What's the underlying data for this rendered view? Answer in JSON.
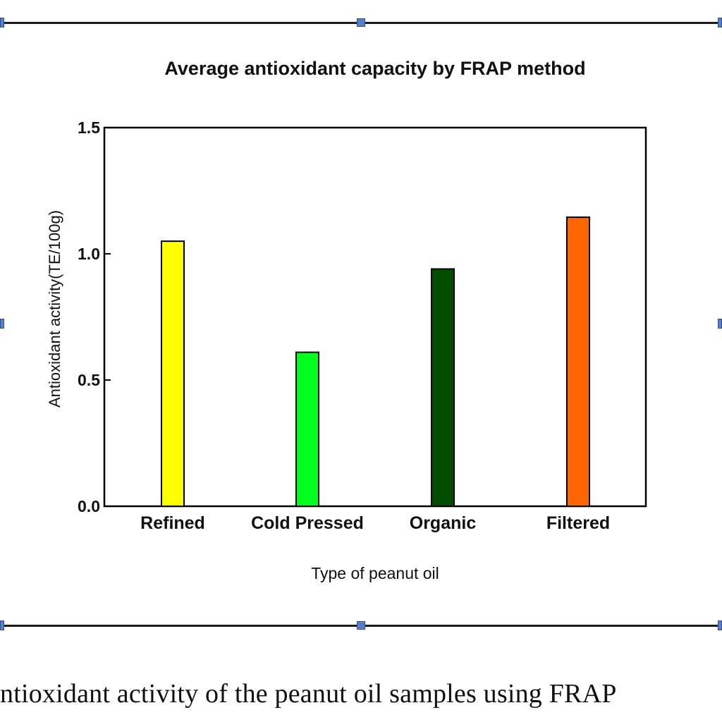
{
  "chart_data": {
    "type": "bar",
    "title": "Average antioxidant capacity by FRAP method",
    "xlabel": "Type of peanut  oil",
    "ylabel": "Antioxidant activity(TE/100g)",
    "categories": [
      "Refined",
      "Cold Pressed",
      "Organic",
      "Filtered"
    ],
    "values": [
      1.05,
      0.61,
      0.94,
      1.145
    ],
    "colors": [
      "#ffff00",
      "#00ff1e",
      "#004d00",
      "#ff6600"
    ],
    "ylim": [
      0,
      1.5
    ],
    "yticks": [
      0.0,
      0.5,
      1.0,
      1.5
    ],
    "ytick_labels": [
      "0.0",
      "0.5",
      "1.0",
      "1.5"
    ],
    "grid": false,
    "legend": "none"
  },
  "caption": "ntioxidant activity of the peanut oil samples using FRAP"
}
